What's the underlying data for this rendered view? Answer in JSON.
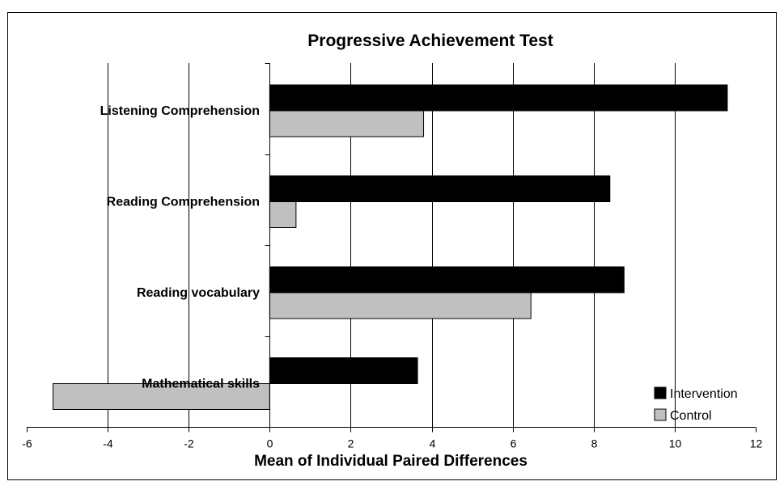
{
  "chart_data": {
    "type": "bar",
    "orientation": "horizontal",
    "title": "Progressive Achievement Test",
    "xlabel": "Mean of Individual Paired Differences",
    "ylabel": "",
    "xlim": [
      -6,
      12
    ],
    "xticks": [
      -6,
      -4,
      -2,
      0,
      2,
      4,
      6,
      8,
      10,
      12
    ],
    "grid": "vertical",
    "legend_position": "bottom-right",
    "categories": [
      "Listening Comprehension",
      "Reading Comprehension",
      "Reading vocabulary",
      "Mathematical skills"
    ],
    "series": [
      {
        "name": "Intervention",
        "color": "#000000",
        "values": [
          11.3,
          8.4,
          8.75,
          3.65
        ]
      },
      {
        "name": "Control",
        "color": "#c0c0c0",
        "values": [
          3.8,
          0.65,
          6.45,
          -5.35
        ]
      }
    ]
  }
}
